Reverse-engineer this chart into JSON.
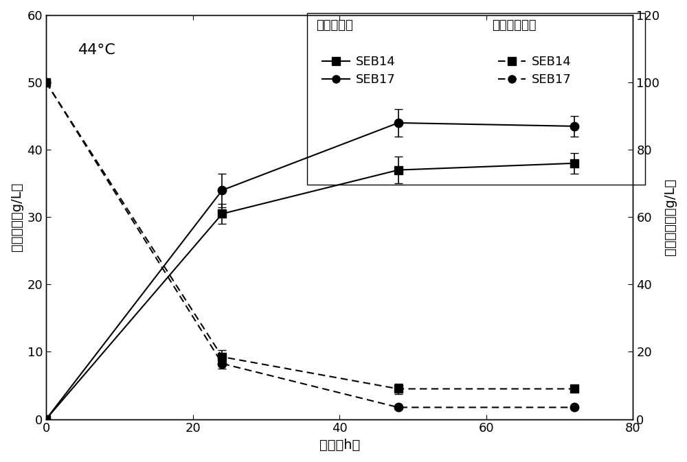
{
  "time": [
    0,
    24,
    48,
    72
  ],
  "ethanol_SEB14": [
    0,
    30.5,
    37.0,
    38.0
  ],
  "ethanol_SEB14_err": [
    0,
    1.5,
    2.0,
    1.5
  ],
  "ethanol_SEB17": [
    0,
    34.0,
    44.0,
    43.5
  ],
  "ethanol_SEB17_err": [
    0,
    2.5,
    2.0,
    1.5
  ],
  "glucose_SEB14": [
    100,
    18.5,
    9.0,
    9.0
  ],
  "glucose_SEB14_err": [
    0,
    2.0,
    1.5,
    1.0
  ],
  "glucose_SEB17": [
    100,
    16.5,
    3.5,
    3.5
  ],
  "glucose_SEB17_err": [
    0,
    1.5,
    0.5,
    0.5
  ],
  "xlim": [
    0,
    80
  ],
  "ylim_left": [
    0,
    60
  ],
  "ylim_right": [
    0,
    120
  ],
  "xticks": [
    0,
    20,
    40,
    60,
    80
  ],
  "yticks_left": [
    0,
    10,
    20,
    30,
    40,
    50,
    60
  ],
  "yticks_right": [
    0,
    20,
    40,
    60,
    80,
    100,
    120
  ],
  "xlabel": "时间（h）",
  "ylabel_left": "乙醇浓度（g/L）",
  "ylabel_right": "葡萄糖浓度（g/L）",
  "annotation": "44°C",
  "legend_ethanol_title": "乙醇浓度：",
  "legend_glucose_title": "葡萄糖浓度：",
  "legend_SEB14": "SEB14",
  "legend_SEB17": "SEB17",
  "line_color": "#000000",
  "markersize": 9,
  "linewidth": 1.5,
  "capsize": 4,
  "elinewidth": 1.2,
  "fontsize_label": 14,
  "fontsize_tick": 13,
  "fontsize_legend": 13,
  "fontsize_annotation": 16
}
